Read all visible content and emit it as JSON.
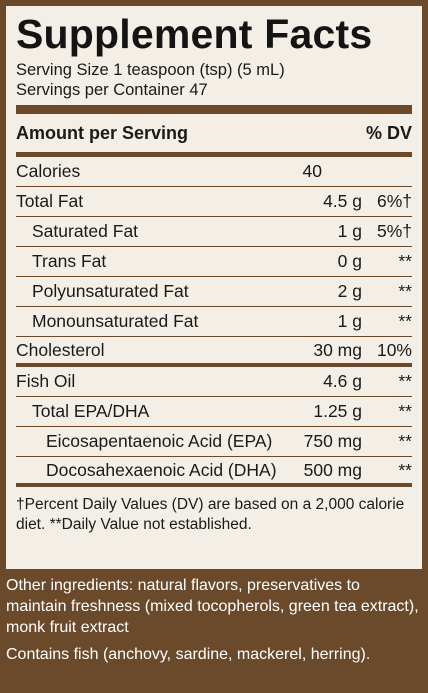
{
  "label": {
    "title": "Supplement Facts",
    "serving_size": "Serving Size 1 teaspoon (tsp) (5 mL)",
    "servings_per_container": "Servings per Container 47",
    "header_amount": "Amount per Serving",
    "header_dv": "% DV",
    "calories": {
      "name": "Calories",
      "amount": "40"
    },
    "total_fat": {
      "name": "Total Fat",
      "amount": "4.5 g",
      "dv": "6%†"
    },
    "saturated_fat": {
      "name": "Saturated Fat",
      "amount": "1 g",
      "dv": "5%†"
    },
    "trans_fat": {
      "name": "Trans Fat",
      "amount": "0 g",
      "dv": "**"
    },
    "polyunsaturated_fat": {
      "name": "Polyunsaturated Fat",
      "amount": "2 g",
      "dv": "**"
    },
    "monounsaturated_fat": {
      "name": "Monounsaturated Fat",
      "amount": "1 g",
      "dv": "**"
    },
    "cholesterol": {
      "name": "Cholesterol",
      "amount": "30 mg",
      "dv": "10%"
    },
    "fish_oil": {
      "name": "Fish Oil",
      "amount": "4.6 g",
      "dv": "**"
    },
    "total_epa_dha": {
      "name": "Total EPA/DHA",
      "amount": "1.25 g",
      "dv": "**"
    },
    "epa": {
      "name": "Eicosapentaenoic Acid (EPA)",
      "amount": "750 mg",
      "dv": "**"
    },
    "dha": {
      "name": "Docosahexaenoic Acid (DHA)",
      "amount": "500 mg",
      "dv": "**"
    },
    "footnote": "†Percent Daily Values (DV) are based on a 2,000 calorie diet. **Daily Value not established."
  },
  "other_ingredients": "Other ingredients: natural flavors, preservatives to maintain freshness (mixed tocopherols, green tea extract), monk fruit extract",
  "allergen": "Contains fish (anchovy, sardine, mackerel, herring).",
  "colors": {
    "brown": "#6b4a2b",
    "panel": "#f3efe6"
  }
}
